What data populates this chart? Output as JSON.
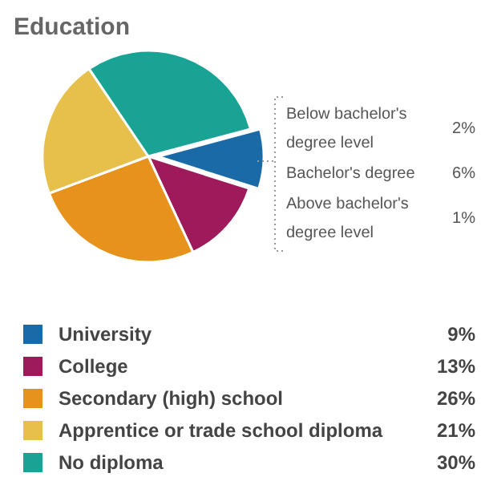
{
  "chart_data": {
    "type": "pie",
    "title": "Education",
    "categories": [
      "University",
      "College",
      "Secondary (high) school",
      "Apprentice or trade school diploma",
      "No diploma"
    ],
    "values": [
      9,
      13,
      26,
      21,
      30
    ],
    "colors": [
      "#1a6aa8",
      "#9e1a5a",
      "#e8921e",
      "#e6c04a",
      "#18a394"
    ],
    "value_labels": [
      "9%",
      "13%",
      "26%",
      "21%",
      "30%"
    ],
    "legend": "bottom",
    "annotations": [
      "Below bachelor's degree level",
      "2%",
      "Bachelor's degree",
      "6%",
      "Above bachelor's degree level",
      "1%"
    ]
  }
}
